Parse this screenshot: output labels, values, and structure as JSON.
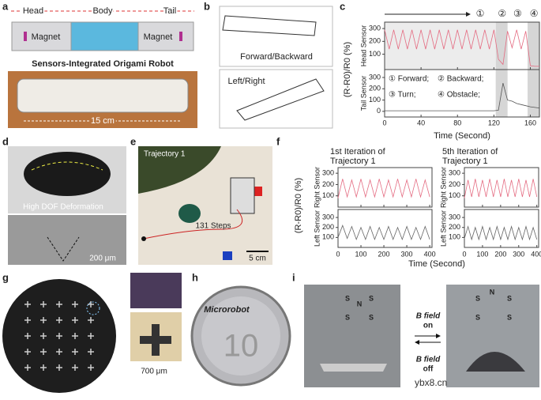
{
  "panel_labels": [
    "a",
    "b",
    "c",
    "d",
    "e",
    "f",
    "g",
    "h",
    "i"
  ],
  "panel_a": {
    "head": "Head",
    "body": "Body",
    "tail": "Tail",
    "magnet_left": "Magnet",
    "magnet_right": "Magnet",
    "caption": "Sensors-Integrated Origami Robot",
    "scale": "15 cm"
  },
  "panel_b": {
    "mode_1": "Forward/Backward",
    "mode_2": "Left/Right"
  },
  "panel_d": {
    "caption": "High DOF Deformation",
    "scale": "200 μm"
  },
  "panel_e": {
    "title": "Trajectory 1",
    "steps": "131 Steps",
    "scale": "5 cm"
  },
  "panel_f": {
    "ylabel": "(R-R0)/R0 (%)",
    "xlabel": "Time (Second)"
  },
  "panel_g": {
    "scale": "700 μm"
  },
  "panel_h": {
    "label": "Microrobot",
    "coin": "10"
  },
  "panel_i": {
    "poles_left": [
      "S",
      "N",
      "S",
      "S",
      "S"
    ],
    "poles_right": [
      "N",
      "S",
      "S",
      "S",
      "S"
    ],
    "on_1": "B field",
    "on_2": "on",
    "off_1": "B field",
    "off_2": "off",
    "watermark": "ybx8.cn"
  },
  "chart_data": [
    {
      "type": "line",
      "xlabel": "Time (Second)",
      "ylabel": "(R-R0)/R0 (%)",
      "x": [
        0,
        5,
        10,
        15,
        20,
        25,
        30,
        35,
        40,
        45,
        50,
        55,
        60,
        65,
        70,
        75,
        80,
        85,
        90,
        95,
        100,
        105,
        110,
        115,
        120,
        125,
        130,
        135,
        140,
        145,
        150,
        155,
        160,
        165,
        170
      ],
      "xlim": [
        0,
        170
      ],
      "xticks": [
        0,
        40,
        80,
        120,
        160
      ],
      "highlight_ranges": [
        [
          122,
          135
        ],
        [
          157,
          170
        ]
      ],
      "markers": [
        {
          "label": "①",
          "x": 105
        },
        {
          "label": "②",
          "x": 129
        },
        {
          "label": "③",
          "x": 146
        },
        {
          "label": "④",
          "x": 164
        }
      ],
      "notes": [
        "① Forward;",
        "② Backward;",
        "③ Turn;",
        "④ Obstacle;"
      ],
      "subplots": [
        {
          "ylabel": "Head Sensor",
          "ylim": [
            -20,
            350
          ],
          "yticks": [
            100,
            200,
            300
          ],
          "series": [
            {
              "color": "#e46a80",
              "values": [
                290,
                140,
                290,
                140,
                290,
                140,
                290,
                140,
                290,
                140,
                290,
                140,
                290,
                140,
                290,
                140,
                290,
                140,
                290,
                140,
                290,
                140,
                290,
                140,
                290,
                60,
                20,
                280,
                150,
                290,
                140,
                280,
                10,
                5,
                5
              ]
            }
          ]
        },
        {
          "ylabel": "Tail Sensor",
          "ylim": [
            -50,
            370
          ],
          "yticks": [
            0,
            100,
            200,
            300
          ],
          "series": [
            {
              "color": "#555555",
              "values": [
                5,
                5,
                5,
                5,
                5,
                5,
                5,
                5,
                5,
                5,
                5,
                5,
                5,
                5,
                5,
                5,
                5,
                5,
                5,
                5,
                5,
                5,
                5,
                5,
                5,
                10,
                250,
                100,
                90,
                70,
                60,
                50,
                40,
                35,
                30
              ]
            }
          ]
        }
      ]
    },
    {
      "type": "line",
      "title": [
        "1st Iteration of",
        "Trajectory 1"
      ],
      "x": [
        0,
        20,
        40,
        60,
        80,
        100,
        120,
        140,
        160,
        180,
        200,
        220,
        240,
        260,
        280,
        300,
        320,
        340,
        360,
        380,
        400
      ],
      "xlim": [
        0,
        410
      ],
      "xticks": [
        0,
        100,
        200,
        300,
        400
      ],
      "subplots": [
        {
          "ylabel": "Right Sensor",
          "ylim": [
            0,
            350
          ],
          "yticks": [
            100,
            200,
            300
          ],
          "series": [
            {
              "color": "#e46a80",
              "values": [
                80,
                250,
                90,
                240,
                90,
                250,
                90,
                240,
                90,
                250,
                90,
                240,
                90,
                250,
                90,
                240,
                90,
                250,
                90,
                240,
                90
              ]
            }
          ]
        },
        {
          "ylabel": "Left Sensor",
          "ylim": [
            0,
            380
          ],
          "yticks": [
            100,
            200,
            300
          ],
          "series": [
            {
              "color": "#666666",
              "values": [
                100,
                220,
                90,
                210,
                80,
                200,
                80,
                210,
                80,
                200,
                80,
                210,
                80,
                200,
                80,
                210,
                80,
                200,
                80,
                210,
                80
              ]
            }
          ]
        }
      ]
    },
    {
      "type": "line",
      "title": [
        "5th Iteration of",
        "Trajectory 1"
      ],
      "x": [
        0,
        20,
        40,
        60,
        80,
        100,
        120,
        140,
        160,
        180,
        200,
        220,
        240,
        260,
        280,
        300,
        320,
        340,
        360,
        380,
        400
      ],
      "xlim": [
        0,
        410
      ],
      "xticks": [
        0,
        100,
        200,
        300,
        400
      ],
      "subplots": [
        {
          "ylabel": "Right Sensor",
          "ylim": [
            0,
            350
          ],
          "yticks": [
            100,
            200,
            300
          ],
          "series": [
            {
              "color": "#e46a80",
              "values": [
                80,
                240,
                90,
                250,
                90,
                240,
                90,
                250,
                90,
                240,
                90,
                250,
                90,
                240,
                90,
                250,
                90,
                240,
                90,
                250,
                90
              ]
            }
          ]
        },
        {
          "ylabel": "Left Sensor",
          "ylim": [
            0,
            380
          ],
          "yticks": [
            100,
            200,
            300
          ],
          "series": [
            {
              "color": "#666666",
              "values": [
                90,
                210,
                80,
                200,
                80,
                210,
                80,
                200,
                80,
                210,
                80,
                200,
                80,
                210,
                80,
                200,
                80,
                210,
                80,
                200,
                80
              ]
            }
          ]
        }
      ]
    }
  ]
}
